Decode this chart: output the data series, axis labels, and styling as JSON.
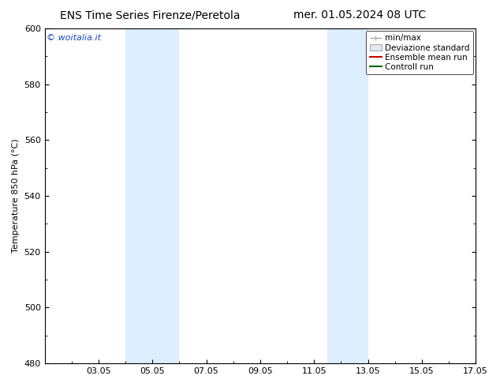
{
  "title_left": "ENS Time Series Firenze/Peretola",
  "title_right": "mer. 01.05.2024 08 UTC",
  "ylabel": "Temperature 850 hPa (°C)",
  "ylim": [
    480,
    600
  ],
  "yticks": [
    480,
    500,
    520,
    540,
    560,
    580,
    600
  ],
  "xtick_labels": [
    "03.05",
    "05.05",
    "07.05",
    "09.05",
    "11.05",
    "13.05",
    "15.05",
    "17.05"
  ],
  "xtick_positions": [
    3,
    5,
    7,
    9,
    11,
    13,
    15,
    17
  ],
  "xlim": [
    1,
    17
  ],
  "blue_bands": [
    {
      "x_start": 4.0,
      "x_end": 6.0
    },
    {
      "x_start": 11.5,
      "x_end": 13.0
    }
  ],
  "band_color": "#ddeeff",
  "watermark_text": "© woitalia.it",
  "watermark_color": "#1a44bb",
  "bg_color": "#ffffff",
  "legend_labels": [
    "min/max",
    "Deviazione standard",
    "Ensemble mean run",
    "Controll run"
  ],
  "legend_colors_line": [
    "#aaaaaa",
    "#cccccc",
    "#cc0000",
    "#006600"
  ],
  "title_fontsize": 10,
  "label_fontsize": 8,
  "tick_fontsize": 8,
  "legend_fontsize": 7.5
}
